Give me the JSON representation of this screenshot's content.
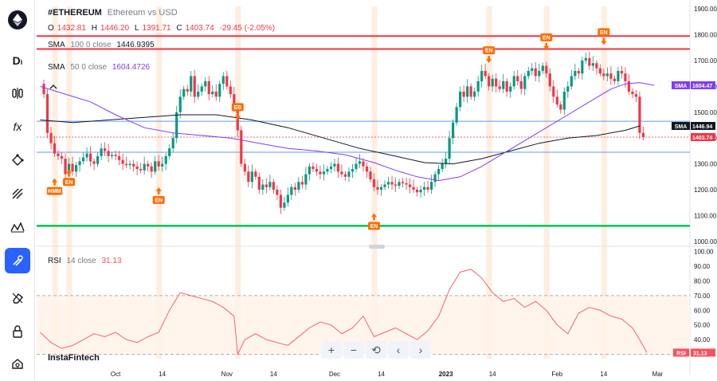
{
  "header": {
    "symbol": "#ETHEREUM",
    "description": "Ethereum vs USD",
    "o_label": "O",
    "o_value": "1432.81",
    "h_label": "H",
    "h_value": "1446.20",
    "l_label": "L",
    "l_value": "1391.71",
    "c_label": "C",
    "c_value": "1403.74",
    "change": "-29.45 (-2.05%)"
  },
  "indicators": {
    "sma100": {
      "name": "SMA",
      "params": "100 0 close",
      "value": "1446.9395",
      "color": "#131722"
    },
    "sma50": {
      "name": "SMA",
      "params": "50 0 close",
      "value": "1604.4726",
      "color": "#7e3ff2"
    },
    "rsi": {
      "name": "RSI",
      "params": "14 close",
      "value": "31.13",
      "color": "#f7525f"
    }
  },
  "brand": "InstaFintech",
  "toolbar": {
    "zoom_in": "+",
    "zoom_out": "−",
    "reset": "⟲",
    "scroll_left": "‹",
    "scroll_right": "›"
  },
  "sidebar": {
    "tools": [
      "text-tool",
      "fib-tool",
      "fx-tool",
      "pattern-tool",
      "lines-tool",
      "forecast-tool",
      "magnet-tool",
      "eraser-tool",
      "lock-tool",
      "visibility-tool"
    ]
  },
  "colors": {
    "up": "#089981",
    "down": "#f23645",
    "accent": "#2962ff",
    "resistance": "#f23645",
    "support": "#00c853",
    "levels": "#5b9cf6",
    "signal": "#ff6d00",
    "highlight": "#fde2cc"
  },
  "chart_data": [
    {
      "type": "line",
      "title": "#ETHEREUM Ethereum vs USD",
      "x_labels": [
        "Oct",
        "14",
        "Nov",
        "14",
        "Dec",
        "14",
        "2023",
        "14",
        "Feb",
        "14",
        "Mar"
      ],
      "x_label_days": [
        22,
        35,
        53,
        66,
        83,
        96,
        114,
        127,
        145,
        158,
        173
      ],
      "y_ticks": [
        1000,
        1100,
        1200,
        1300,
        1400,
        1500,
        1600,
        1700,
        1800,
        1900
      ],
      "y_tick_labels": [
        "1000.00",
        "1100.00",
        "1200.00",
        "1300.00",
        "1400.00",
        "1500.00",
        "1600.00",
        "1700.00",
        "1800.00",
        "1900.00"
      ],
      "ylim": [
        990,
        1910
      ],
      "xlim": [
        0,
        182
      ],
      "price_close": [
        [
          1,
          1610
        ],
        [
          2,
          1570
        ],
        [
          3,
          1420
        ],
        [
          4,
          1380
        ],
        [
          5,
          1340
        ],
        [
          6,
          1330
        ],
        [
          7,
          1320
        ],
        [
          8,
          1260
        ],
        [
          9,
          1300
        ],
        [
          10,
          1270
        ],
        [
          11,
          1295
        ],
        [
          12,
          1310
        ],
        [
          13,
          1325
        ],
        [
          14,
          1340
        ],
        [
          15,
          1310
        ],
        [
          16,
          1300
        ],
        [
          17,
          1330
        ],
        [
          18,
          1360
        ],
        [
          19,
          1350
        ],
        [
          20,
          1330
        ],
        [
          21,
          1335
        ],
        [
          22,
          1330
        ],
        [
          23,
          1315
        ],
        [
          24,
          1300
        ],
        [
          25,
          1295
        ],
        [
          26,
          1300
        ],
        [
          27,
          1290
        ],
        [
          28,
          1280
        ],
        [
          29,
          1275
        ],
        [
          30,
          1300
        ],
        [
          31,
          1290
        ],
        [
          32,
          1270
        ],
        [
          33,
          1310
        ],
        [
          34,
          1290
        ],
        [
          35,
          1300
        ],
        [
          36,
          1330
        ],
        [
          37,
          1360
        ],
        [
          38,
          1400
        ],
        [
          39,
          1500
        ],
        [
          40,
          1560
        ],
        [
          41,
          1590
        ],
        [
          42,
          1580
        ],
        [
          43,
          1640
        ],
        [
          44,
          1560
        ],
        [
          45,
          1580
        ],
        [
          46,
          1600
        ],
        [
          47,
          1620
        ],
        [
          48,
          1570
        ],
        [
          49,
          1580
        ],
        [
          50,
          1560
        ],
        [
          51,
          1610
        ],
        [
          52,
          1640
        ],
        [
          53,
          1600
        ],
        [
          54,
          1570
        ],
        [
          55,
          1520
        ],
        [
          56,
          1430
        ],
        [
          57,
          1300
        ],
        [
          58,
          1270
        ],
        [
          59,
          1230
        ],
        [
          60,
          1270
        ],
        [
          61,
          1250
        ],
        [
          62,
          1200
        ],
        [
          63,
          1220
        ],
        [
          64,
          1210
        ],
        [
          65,
          1230
        ],
        [
          66,
          1200
        ],
        [
          67,
          1180
        ],
        [
          68,
          1130
        ],
        [
          69,
          1150
        ],
        [
          70,
          1180
        ],
        [
          71,
          1210
        ],
        [
          72,
          1200
        ],
        [
          73,
          1230
        ],
        [
          74,
          1220
        ],
        [
          75,
          1260
        ],
        [
          76,
          1290
        ],
        [
          77,
          1280
        ],
        [
          78,
          1270
        ],
        [
          79,
          1260
        ],
        [
          80,
          1270
        ],
        [
          81,
          1280
        ],
        [
          82,
          1290
        ],
        [
          83,
          1300
        ],
        [
          84,
          1270
        ],
        [
          85,
          1260
        ],
        [
          86,
          1250
        ],
        [
          87,
          1270
        ],
        [
          88,
          1280
        ],
        [
          89,
          1300
        ],
        [
          90,
          1310
        ],
        [
          91,
          1290
        ],
        [
          92,
          1270
        ],
        [
          93,
          1240
        ],
        [
          94,
          1210
        ],
        [
          95,
          1200
        ],
        [
          96,
          1210
        ],
        [
          97,
          1220
        ],
        [
          98,
          1230
        ],
        [
          99,
          1220
        ],
        [
          100,
          1215
        ],
        [
          101,
          1230
        ],
        [
          102,
          1225
        ],
        [
          103,
          1220
        ],
        [
          104,
          1210
        ],
        [
          105,
          1200
        ],
        [
          106,
          1190
        ],
        [
          107,
          1200
        ],
        [
          108,
          1210
        ],
        [
          109,
          1200
        ],
        [
          110,
          1230
        ],
        [
          111,
          1260
        ],
        [
          112,
          1280
        ],
        [
          113,
          1300
        ],
        [
          114,
          1320
        ],
        [
          115,
          1400
        ],
        [
          116,
          1460
        ],
        [
          117,
          1520
        ],
        [
          118,
          1580
        ],
        [
          119,
          1560
        ],
        [
          120,
          1600
        ],
        [
          121,
          1560
        ],
        [
          122,
          1580
        ],
        [
          123,
          1620
        ],
        [
          124,
          1660
        ],
        [
          125,
          1640
        ],
        [
          126,
          1600
        ],
        [
          127,
          1630
        ],
        [
          128,
          1600
        ],
        [
          129,
          1590
        ],
        [
          130,
          1620
        ],
        [
          131,
          1580
        ],
        [
          132,
          1600
        ],
        [
          133,
          1640
        ],
        [
          134,
          1620
        ],
        [
          135,
          1590
        ],
        [
          136,
          1640
        ],
        [
          137,
          1660
        ],
        [
          138,
          1670
        ],
        [
          139,
          1640
        ],
        [
          140,
          1660
        ],
        [
          141,
          1680
        ],
        [
          142,
          1650
        ],
        [
          143,
          1600
        ],
        [
          144,
          1560
        ],
        [
          145,
          1530
        ],
        [
          146,
          1510
        ],
        [
          147,
          1580
        ],
        [
          148,
          1600
        ],
        [
          149,
          1640
        ],
        [
          150,
          1660
        ],
        [
          151,
          1650
        ],
        [
          152,
          1700
        ],
        [
          153,
          1710
        ],
        [
          154,
          1680
        ],
        [
          155,
          1690
        ],
        [
          156,
          1670
        ],
        [
          157,
          1650
        ],
        [
          158,
          1640
        ],
        [
          159,
          1650
        ],
        [
          160,
          1630
        ],
        [
          161,
          1620
        ],
        [
          162,
          1660
        ],
        [
          163,
          1650
        ],
        [
          164,
          1620
        ],
        [
          165,
          1580
        ],
        [
          166,
          1570
        ],
        [
          167,
          1560
        ],
        [
          168,
          1420
        ],
        [
          169,
          1403.74
        ]
      ],
      "sma50": [
        [
          1,
          1600
        ],
        [
          8,
          1570
        ],
        [
          15,
          1540
        ],
        [
          22,
          1490
        ],
        [
          30,
          1440
        ],
        [
          38,
          1420
        ],
        [
          46,
          1410
        ],
        [
          54,
          1400
        ],
        [
          62,
          1380
        ],
        [
          70,
          1360
        ],
        [
          78,
          1350
        ],
        [
          86,
          1335
        ],
        [
          94,
          1305
        ],
        [
          100,
          1275
        ],
        [
          106,
          1250
        ],
        [
          112,
          1235
        ],
        [
          118,
          1250
        ],
        [
          124,
          1290
        ],
        [
          130,
          1340
        ],
        [
          136,
          1390
        ],
        [
          142,
          1440
        ],
        [
          148,
          1490
        ],
        [
          154,
          1540
        ],
        [
          160,
          1590
        ],
        [
          164,
          1610
        ],
        [
          168,
          1615
        ],
        [
          172,
          1604.47
        ]
      ],
      "sma100": [
        [
          1,
          1470
        ],
        [
          10,
          1460
        ],
        [
          20,
          1470
        ],
        [
          30,
          1480
        ],
        [
          40,
          1490
        ],
        [
          50,
          1490
        ],
        [
          60,
          1470
        ],
        [
          70,
          1440
        ],
        [
          80,
          1400
        ],
        [
          90,
          1360
        ],
        [
          100,
          1330
        ],
        [
          108,
          1305
        ],
        [
          116,
          1300
        ],
        [
          124,
          1320
        ],
        [
          132,
          1350
        ],
        [
          140,
          1380
        ],
        [
          148,
          1400
        ],
        [
          156,
          1410
        ],
        [
          164,
          1430
        ],
        [
          168,
          1446.94
        ]
      ],
      "resistance_lines": [
        1795,
        1745
      ],
      "support_line": 1060,
      "level_lines": [
        1465,
        1345
      ],
      "last_price": 1403.74,
      "last_price_label": "1403.74",
      "sma50_label": "1604.47",
      "sma100_label": "1446.94",
      "sma_tag": "SMA",
      "signals": [
        {
          "day": 5,
          "label": "HMM",
          "dir": "up",
          "price": 1195
        },
        {
          "day": 9,
          "label": "EN",
          "dir": "up",
          "price": 1230
        },
        {
          "day": 34,
          "label": "EN",
          "dir": "up",
          "price": 1160
        },
        {
          "day": 56,
          "label": "EB",
          "dir": "down",
          "price": 1520
        },
        {
          "day": 94,
          "label": "EN",
          "dir": "up",
          "price": 1060
        },
        {
          "day": 126,
          "label": "EN",
          "dir": "down",
          "price": 1740
        },
        {
          "day": 142,
          "label": "EN",
          "dir": "down",
          "price": 1790
        },
        {
          "day": 158,
          "label": "EN",
          "dir": "down",
          "price": 1810
        }
      ],
      "highlight_days": [
        5,
        9,
        34,
        56,
        94,
        126,
        142,
        158
      ]
    },
    {
      "type": "line",
      "title": "RSI 14 close",
      "y_ticks": [
        30,
        40,
        50,
        60,
        70,
        80,
        90,
        100
      ],
      "y_tick_labels": [
        "30.00",
        "40.00",
        "50.00",
        "60.00",
        "70.00",
        "80.00",
        "90.00",
        "100.00"
      ],
      "ylim": [
        27,
        102
      ],
      "band": [
        30,
        70
      ],
      "last_value": 31.13,
      "last_label": "31.13",
      "tag": "RSI",
      "values": [
        [
          1,
          45
        ],
        [
          4,
          38
        ],
        [
          7,
          34
        ],
        [
          10,
          36
        ],
        [
          13,
          40
        ],
        [
          16,
          44
        ],
        [
          19,
          42
        ],
        [
          22,
          45
        ],
        [
          25,
          40
        ],
        [
          28,
          38
        ],
        [
          31,
          42
        ],
        [
          34,
          45
        ],
        [
          37,
          60
        ],
        [
          40,
          72
        ],
        [
          43,
          70
        ],
        [
          46,
          68
        ],
        [
          49,
          66
        ],
        [
          52,
          62
        ],
        [
          55,
          56
        ],
        [
          56,
          30
        ],
        [
          58,
          40
        ],
        [
          61,
          44
        ],
        [
          64,
          40
        ],
        [
          67,
          38
        ],
        [
          70,
          36
        ],
        [
          73,
          42
        ],
        [
          76,
          48
        ],
        [
          79,
          52
        ],
        [
          82,
          50
        ],
        [
          85,
          44
        ],
        [
          88,
          48
        ],
        [
          91,
          56
        ],
        [
          94,
          42
        ],
        [
          97,
          45
        ],
        [
          100,
          48
        ],
        [
          103,
          44
        ],
        [
          106,
          40
        ],
        [
          109,
          46
        ],
        [
          112,
          56
        ],
        [
          115,
          74
        ],
        [
          118,
          86
        ],
        [
          121,
          88
        ],
        [
          124,
          82
        ],
        [
          127,
          72
        ],
        [
          130,
          66
        ],
        [
          133,
          68
        ],
        [
          136,
          62
        ],
        [
          139,
          66
        ],
        [
          142,
          60
        ],
        [
          145,
          50
        ],
        [
          148,
          44
        ],
        [
          151,
          58
        ],
        [
          154,
          62
        ],
        [
          157,
          60
        ],
        [
          160,
          56
        ],
        [
          163,
          54
        ],
        [
          166,
          48
        ],
        [
          168,
          40
        ],
        [
          170,
          31.13
        ]
      ]
    }
  ]
}
